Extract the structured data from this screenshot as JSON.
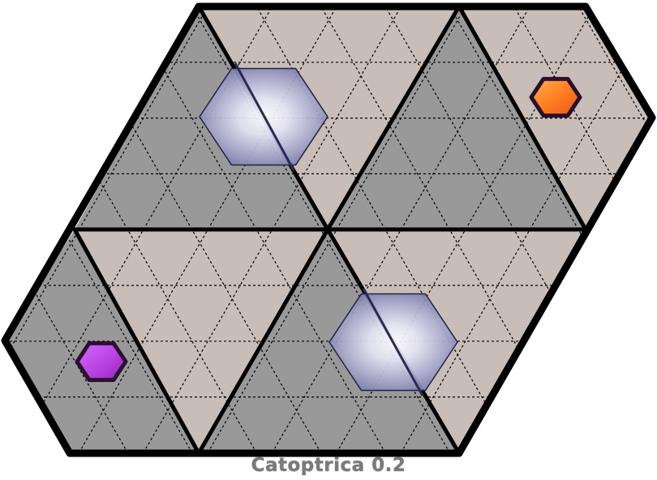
{
  "app": {
    "title": "Catoptrica 0.2"
  },
  "board": {
    "shape": "rhombus",
    "grid": "triangular",
    "outline_color": "#000000",
    "grid_line_color": "#000000",
    "grid_line_style": "dashed",
    "colors": {
      "dark_cell": "#999999",
      "light_cell": "#c8bdb7",
      "mirror_fill": "#c9c9e2",
      "mirror_edge": "#222244"
    },
    "regions": [
      {
        "name": "region-top-left-large",
        "color": "dark"
      },
      {
        "name": "region-top-left-upper",
        "color": "light"
      },
      {
        "name": "region-top-mid-band",
        "color": "light"
      },
      {
        "name": "region-top-right-large",
        "color": "dark"
      },
      {
        "name": "region-top-right-upper",
        "color": "light"
      },
      {
        "name": "region-bottom-left-large",
        "color": "dark"
      },
      {
        "name": "region-bottom-left-band",
        "color": "light"
      },
      {
        "name": "region-bottom-mid-large",
        "color": "dark"
      },
      {
        "name": "region-bottom-right-band",
        "color": "light"
      }
    ],
    "mirrors": [
      {
        "name": "mirror-hexagon-top",
        "type": "mirror"
      },
      {
        "name": "mirror-hexagon-bottom",
        "type": "mirror"
      }
    ],
    "pieces": [
      {
        "name": "orange-hexagon-piece",
        "color": "#ff7a1f"
      },
      {
        "name": "purple-hexagon-piece",
        "color": "#b63ee0"
      }
    ]
  }
}
